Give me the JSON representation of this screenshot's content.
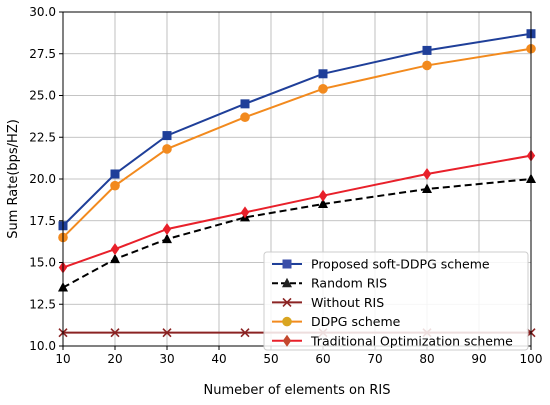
{
  "chart_data": {
    "type": "line",
    "xlabel": "Numeber of elements on RIS",
    "ylabel": "Sum Rate(bps/HZ)",
    "xlim": [
      10,
      100
    ],
    "ylim": [
      10.0,
      30.0
    ],
    "xticks": [
      10,
      20,
      30,
      40,
      50,
      60,
      70,
      80,
      90,
      100
    ],
    "yticks": [
      "10.0",
      "12.5",
      "15.0",
      "17.5",
      "20.0",
      "22.5",
      "25.0",
      "27.5",
      "30.0"
    ],
    "grid": true,
    "legend_position": "bottom-right",
    "series": [
      {
        "name": "Proposed soft-DDPG scheme",
        "color": "#1f3f99",
        "marker": "square",
        "dash": "solid",
        "x": [
          10,
          20,
          30,
          45,
          60,
          80,
          100
        ],
        "y": [
          17.2,
          20.3,
          22.6,
          24.5,
          26.3,
          27.7,
          28.7
        ]
      },
      {
        "name": "Random RIS",
        "color": "#000000",
        "marker": "triangle",
        "dash": "dashed",
        "x": [
          10,
          20,
          30,
          45,
          60,
          80,
          100
        ],
        "y": [
          13.5,
          15.2,
          16.4,
          17.7,
          18.5,
          19.4,
          20.0
        ]
      },
      {
        "name": "Without RIS",
        "color": "#8b2323",
        "marker": "x",
        "dash": "solid",
        "x": [
          10,
          20,
          30,
          45,
          60,
          80,
          100
        ],
        "y": [
          10.8,
          10.8,
          10.8,
          10.8,
          10.8,
          10.8,
          10.8
        ]
      },
      {
        "name": "DDPG scheme",
        "color": "#f28a1e",
        "marker": "circle",
        "dash": "solid",
        "x": [
          10,
          20,
          30,
          45,
          60,
          80,
          100
        ],
        "y": [
          16.5,
          19.6,
          21.8,
          23.7,
          25.4,
          26.8,
          27.8
        ]
      },
      {
        "name": "Traditional Optimization scheme",
        "color": "#e8202a",
        "marker": "diamond",
        "dash": "solid",
        "x": [
          10,
          20,
          30,
          45,
          60,
          80,
          100
        ],
        "y": [
          14.7,
          15.8,
          17.0,
          18.0,
          19.0,
          20.3,
          21.4
        ]
      }
    ],
    "legend_marker_colors": [
      "#3a4ea8",
      "#222222",
      "#8b2323",
      "#d9a521",
      "#c4482e"
    ]
  }
}
